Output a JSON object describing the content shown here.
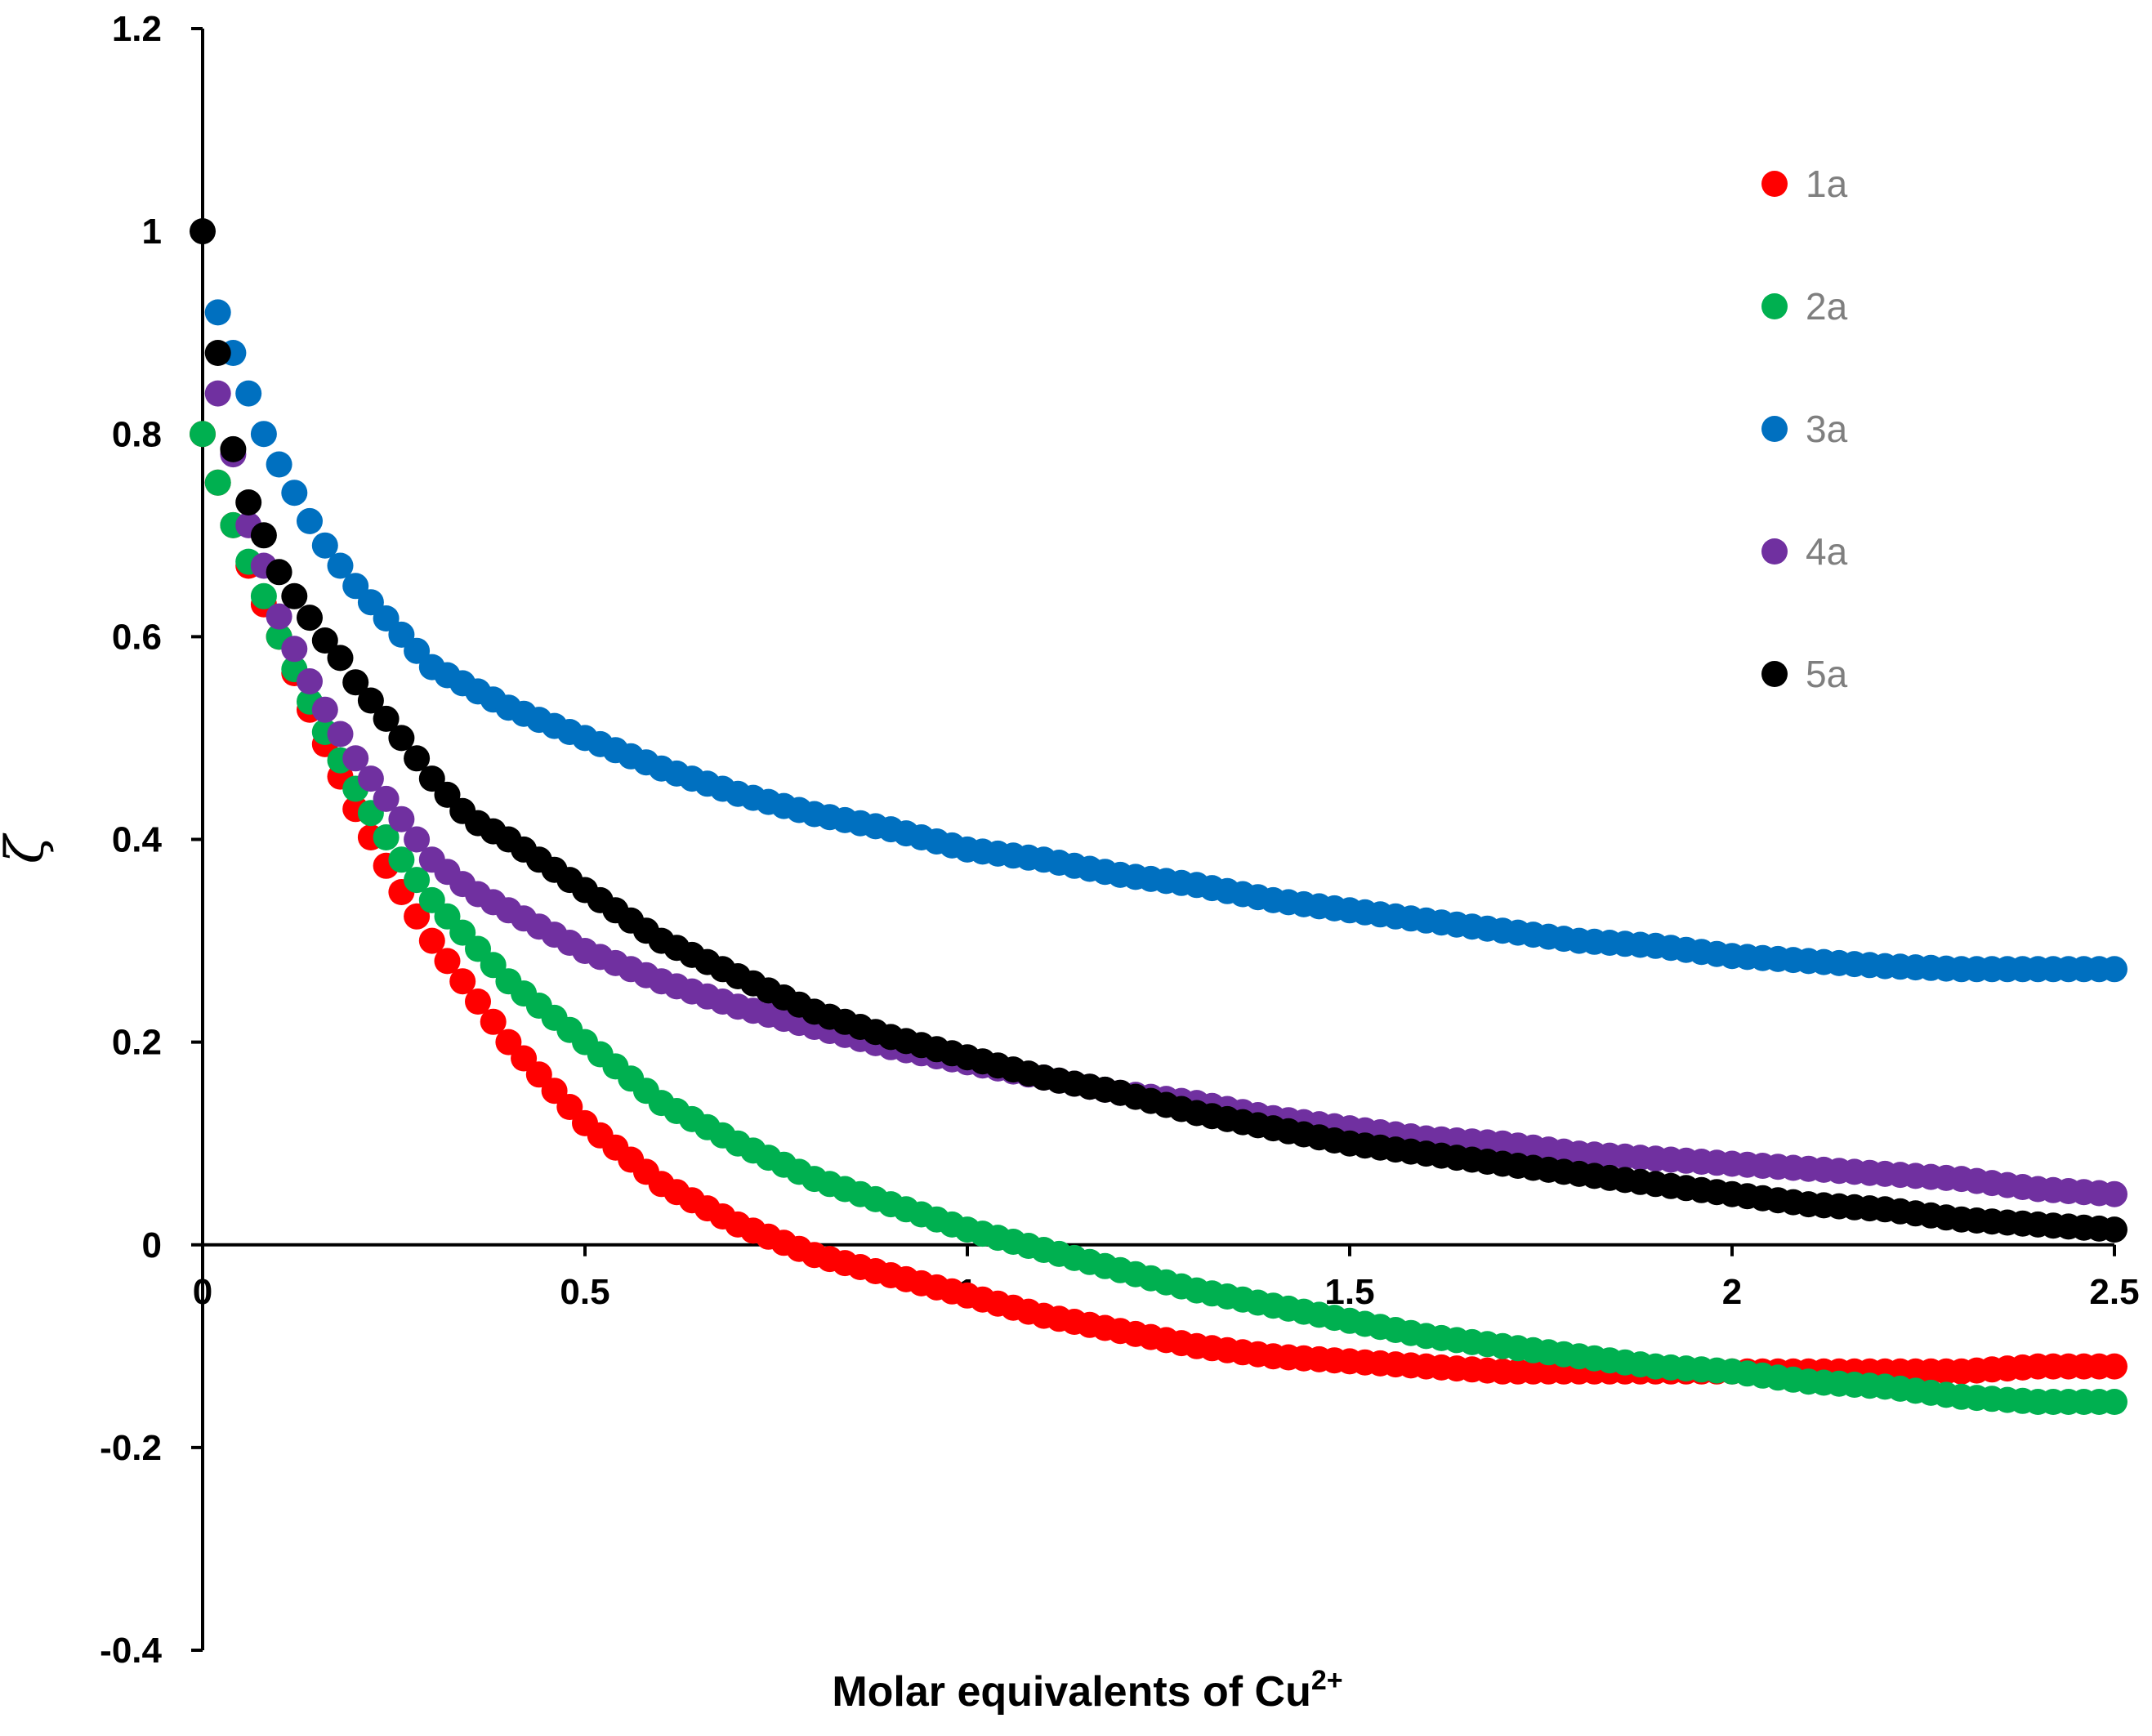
{
  "chart_data": {
    "type": "scatter",
    "title": "",
    "xlabel": "Molar equivalents of Cu",
    "xlabel_superscript": "2+",
    "ylabel": "ζ",
    "xlim": [
      0,
      2.5
    ],
    "ylim": [
      -0.4,
      1.2
    ],
    "x_ticks": [
      "0",
      "0.5",
      "1",
      "1.5",
      "2",
      "2.5"
    ],
    "y_ticks": [
      "1.2",
      "1",
      "0.8",
      "0.6",
      "0.4",
      "0.2",
      "0",
      "-0.2",
      "-0.4"
    ],
    "legend_position": "top-right",
    "series": [
      {
        "name": "1a",
        "color": "#ff0000",
        "x": [
          0,
          0.025,
          0.05,
          0.075,
          0.1,
          0.15,
          0.2,
          0.25,
          0.3,
          0.35,
          0.4,
          0.5,
          0.6,
          0.7,
          0.8,
          0.9,
          1.0,
          1.1,
          1.2,
          1.3,
          1.4,
          1.5,
          1.6,
          1.7,
          1.8,
          1.9,
          2.0,
          2.1,
          2.2,
          2.3,
          2.4,
          2.5
        ],
        "y": [
          0.8,
          0.74,
          0.69,
          0.64,
          0.6,
          0.51,
          0.43,
          0.36,
          0.3,
          0.25,
          0.2,
          0.12,
          0.06,
          0.02,
          -0.01,
          -0.03,
          -0.05,
          -0.07,
          -0.085,
          -0.1,
          -0.11,
          -0.115,
          -0.12,
          -0.125,
          -0.125,
          -0.125,
          -0.125,
          -0.125,
          -0.125,
          -0.125,
          -0.12,
          -0.12
        ]
      },
      {
        "name": "2a",
        "color": "#00b050",
        "x": [
          0,
          0.025,
          0.05,
          0.075,
          0.1,
          0.15,
          0.2,
          0.25,
          0.3,
          0.35,
          0.4,
          0.5,
          0.6,
          0.7,
          0.8,
          0.9,
          1.0,
          1.1,
          1.2,
          1.3,
          1.4,
          1.5,
          1.6,
          1.7,
          1.8,
          1.9,
          2.0,
          2.1,
          2.2,
          2.3,
          2.4,
          2.5
        ],
        "y": [
          0.8,
          0.74,
          0.69,
          0.65,
          0.6,
          0.52,
          0.45,
          0.39,
          0.34,
          0.3,
          0.26,
          0.2,
          0.14,
          0.1,
          0.065,
          0.04,
          0.015,
          -0.005,
          -0.025,
          -0.045,
          -0.06,
          -0.075,
          -0.09,
          -0.1,
          -0.11,
          -0.12,
          -0.125,
          -0.135,
          -0.14,
          -0.15,
          -0.155,
          -0.155
        ]
      },
      {
        "name": "3a",
        "color": "#0070c0",
        "x": [
          0.02,
          0.04,
          0.06,
          0.08,
          0.1,
          0.15,
          0.2,
          0.25,
          0.3,
          0.35,
          0.4,
          0.5,
          0.6,
          0.7,
          0.8,
          0.9,
          1.0,
          1.1,
          1.2,
          1.3,
          1.4,
          1.5,
          1.6,
          1.7,
          1.8,
          1.9,
          2.0,
          2.1,
          2.2,
          2.3,
          2.4,
          2.5
        ],
        "y": [
          0.92,
          0.88,
          0.84,
          0.8,
          0.77,
          0.7,
          0.65,
          0.61,
          0.57,
          0.55,
          0.53,
          0.5,
          0.47,
          0.445,
          0.425,
          0.41,
          0.39,
          0.38,
          0.365,
          0.355,
          0.34,
          0.33,
          0.32,
          0.31,
          0.3,
          0.295,
          0.285,
          0.28,
          0.275,
          0.272,
          0.272,
          0.272
        ]
      },
      {
        "name": "4a",
        "color": "#7030a0",
        "x": [
          0.02,
          0.04,
          0.06,
          0.08,
          0.1,
          0.15,
          0.2,
          0.25,
          0.3,
          0.35,
          0.4,
          0.5,
          0.6,
          0.7,
          0.8,
          0.9,
          1.0,
          1.1,
          1.2,
          1.3,
          1.4,
          1.5,
          1.6,
          1.7,
          1.8,
          1.9,
          2.0,
          2.1,
          2.2,
          2.3,
          2.4,
          2.5
        ],
        "y": [
          0.84,
          0.78,
          0.71,
          0.67,
          0.62,
          0.54,
          0.48,
          0.43,
          0.38,
          0.35,
          0.33,
          0.29,
          0.26,
          0.235,
          0.215,
          0.195,
          0.18,
          0.165,
          0.15,
          0.14,
          0.125,
          0.115,
          0.105,
          0.1,
          0.09,
          0.085,
          0.08,
          0.075,
          0.07,
          0.065,
          0.055,
          0.05
        ]
      },
      {
        "name": "5a",
        "color": "#000000",
        "x": [
          0,
          0.02,
          0.035,
          0.055,
          0.075,
          0.095,
          0.115,
          0.135,
          0.155,
          0.175,
          0.2,
          0.25,
          0.3,
          0.35,
          0.4,
          0.5,
          0.6,
          0.7,
          0.8,
          0.9,
          1.0,
          1.1,
          1.2,
          1.3,
          1.4,
          1.5,
          1.6,
          1.7,
          1.8,
          1.9,
          2.0,
          2.1,
          2.2,
          2.3,
          2.4,
          2.5
        ],
        "y": [
          1.0,
          0.88,
          0.8,
          0.74,
          0.71,
          0.67,
          0.645,
          0.625,
          0.6,
          0.585,
          0.555,
          0.51,
          0.46,
          0.42,
          0.4,
          0.35,
          0.3,
          0.265,
          0.23,
          0.205,
          0.185,
          0.165,
          0.15,
          0.13,
          0.115,
          0.1,
          0.09,
          0.08,
          0.07,
          0.06,
          0.05,
          0.04,
          0.035,
          0.025,
          0.02,
          0.015
        ]
      }
    ]
  }
}
